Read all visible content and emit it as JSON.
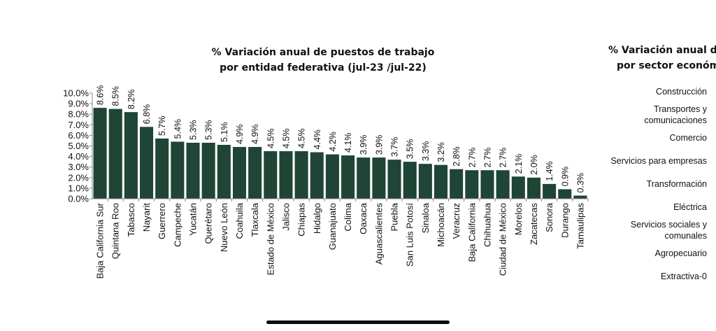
{
  "chart_data": [
    {
      "type": "bar",
      "title": [
        "% Variación anual de puestos de trabajo",
        "por entidad federativa (jul-23 /jul-22)"
      ],
      "categories": [
        "Baja California Sur",
        "Quintana Roo",
        "Tabasco",
        "Nayarit",
        "Guerrero",
        "Campeche",
        "Yucatán",
        "Querétaro",
        "Nuevo León",
        "Coahuila",
        "Tlaxcala",
        "Estado de México",
        "Jalisco",
        "Chiapas",
        "Hidalgo",
        "Guanajuato",
        "Colima",
        "Oaxaca",
        "Aguascalientes",
        "Puebla",
        "San Luis Potosí",
        "Sinaloa",
        "Michoacán",
        "Veracruz",
        "Baja California",
        "Chihuahua",
        "Ciudad de México",
        "Morelos",
        "Zacatecas",
        "Sonora",
        "Durango",
        "Tamaulipas"
      ],
      "values": [
        8.6,
        8.5,
        8.2,
        6.8,
        5.7,
        5.4,
        5.3,
        5.3,
        5.1,
        4.9,
        4.9,
        4.5,
        4.5,
        4.5,
        4.4,
        4.2,
        4.1,
        3.9,
        3.9,
        3.7,
        3.5,
        3.3,
        3.2,
        2.8,
        2.7,
        2.7,
        2.7,
        2.1,
        2.0,
        1.4,
        0.9,
        0.3
      ],
      "data_labels": [
        "8.6%",
        "8.5%",
        "8.2%",
        "6.8%",
        "5.7%",
        "5.4%",
        "5.3%",
        "5.3%",
        "5.1%",
        "4.9%",
        "4.9%",
        "4.5%",
        "4.5%",
        "4.5%",
        "4.4%",
        "4.2%",
        "4.1%",
        "3.9%",
        "3.9%",
        "3.7%",
        "3.5%",
        "3.3%",
        "3.2%",
        "2.8%",
        "2.7%",
        "2.7%",
        "2.7%",
        "2.1%",
        "2.0%",
        "1.4%",
        "0.9%",
        "0.3%"
      ],
      "ylim": [
        0,
        10
      ],
      "y_ticks": [
        "0.0%",
        "1.0%",
        "2.0%",
        "3.0%",
        "4.0%",
        "5.0%",
        "6.0%",
        "7.0%",
        "8.0%",
        "9.0%",
        "10.0%"
      ],
      "grid": false,
      "legend": "none",
      "bar_color": "#1e4535"
    },
    {
      "type": "bar",
      "title": [
        "% Variación anual d",
        "por sector económ"
      ],
      "categories": [
        [
          "Construcción"
        ],
        [
          "Transportes y",
          "comunicaciones"
        ],
        [
          "Comercio"
        ],
        [
          "Servicios para empresas"
        ],
        [
          "Transformación"
        ],
        [
          "Eléctrica"
        ],
        [
          "Servicios sociales y",
          "comunales"
        ],
        [
          "Agropecuario"
        ],
        [
          "Extractiva-0"
        ]
      ]
    }
  ]
}
